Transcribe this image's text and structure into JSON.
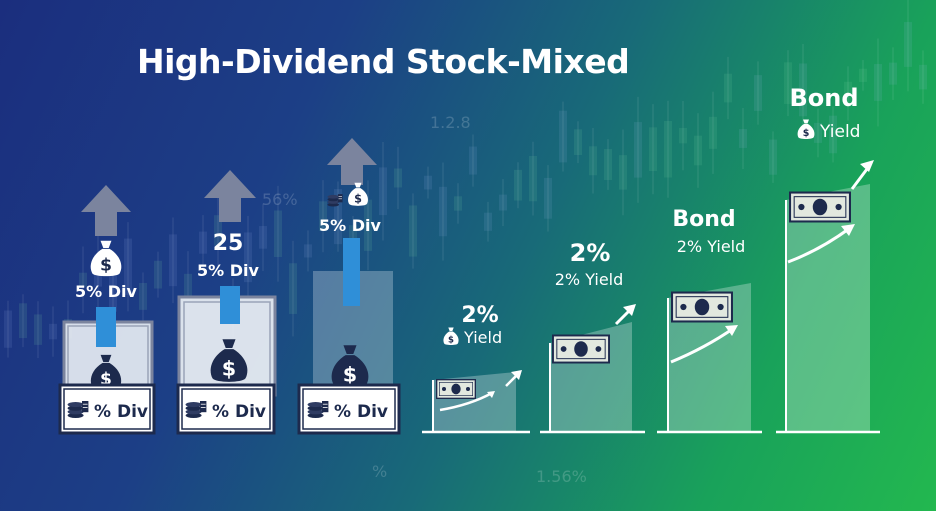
{
  "title": "High-Dividend Stock-Mixed",
  "background_text": [
    "1.2.8",
    "56%",
    "%",
    "1.56%"
  ],
  "colors": {
    "background_left": "#1b2e7e",
    "background_right": "#23b84f",
    "arrow_gray": "#7b849e",
    "dividend_blue": "#2f8fd8",
    "money_bag": "#1d2a4d",
    "panel_outline": "#ffffff"
  },
  "stocks": [
    {
      "top_label": "",
      "dividend_label": "5% Div",
      "plaque_label": "% Div",
      "icon": "money-bag-icon"
    },
    {
      "top_label": "25",
      "dividend_label": "5% Div",
      "plaque_label": "% Div",
      "icon": "money-bag-icon"
    },
    {
      "top_label": "",
      "dividend_label": "5% Div",
      "plaque_label": "% Div",
      "icon": "coins-and-money-bag-icon"
    }
  ],
  "bonds": [
    {
      "heading": "2%",
      "yield_label": "Yield",
      "icon": "money-bag-icon"
    },
    {
      "heading": "2%",
      "yield_label": "2% Yield"
    },
    {
      "heading": "Bond",
      "yield_label": "2% Yield"
    },
    {
      "heading": "Bond",
      "yield_label": "Yield",
      "icon": "money-bag-icon"
    }
  ]
}
